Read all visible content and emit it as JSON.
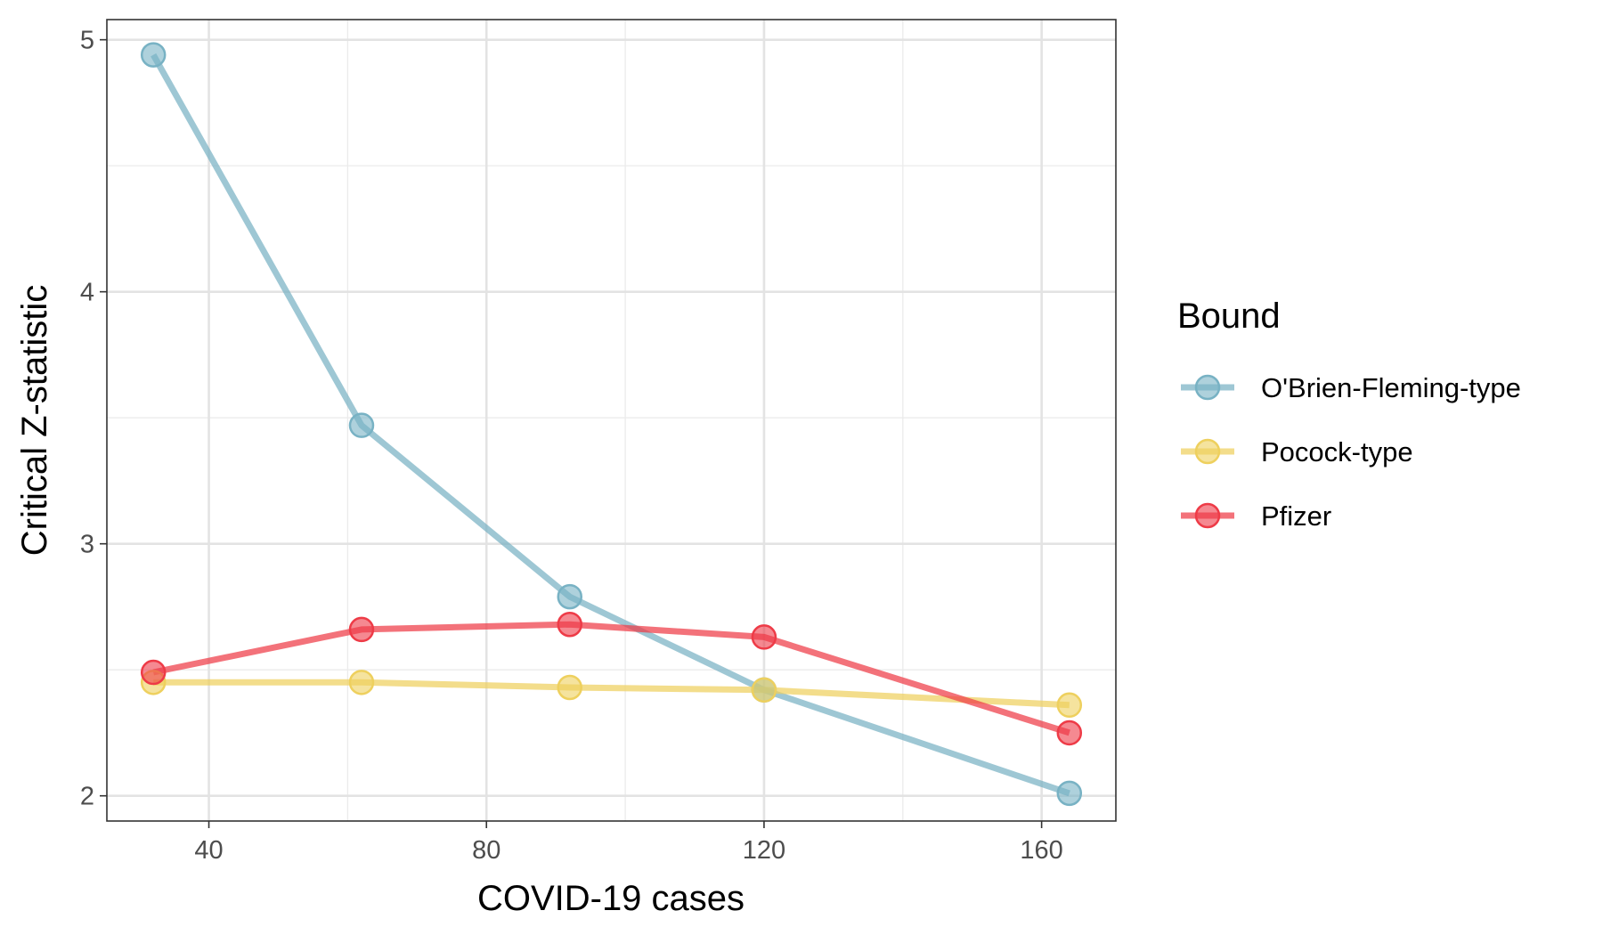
{
  "chart_data": {
    "type": "line",
    "xlabel": "COVID-19 cases",
    "ylabel": "Critical Z-statistic",
    "xlim": [
      25.3,
      170.7
    ],
    "ylim": [
      1.9,
      5.08
    ],
    "xticks": [
      40,
      80,
      120,
      160
    ],
    "yticks": [
      2,
      3,
      4,
      5
    ],
    "xticks_minor": [
      60,
      100,
      140
    ],
    "yticks_minor": [
      2.5,
      3.5,
      4.5
    ],
    "grid": true,
    "legend": {
      "title": "Bound",
      "position": "right"
    },
    "series": [
      {
        "name": "O'Brien-Fleming-type",
        "color": "#78B2C4",
        "x": [
          32,
          62,
          92,
          120,
          164
        ],
        "y": [
          4.94,
          3.47,
          2.79,
          2.42,
          2.01
        ]
      },
      {
        "name": "Pocock-type",
        "color": "#EED05E",
        "x": [
          32,
          62,
          92,
          120,
          164
        ],
        "y": [
          2.45,
          2.45,
          2.43,
          2.42,
          2.36
        ]
      },
      {
        "name": "Pfizer",
        "color": "#EE3B47",
        "x": [
          32,
          62,
          92,
          120,
          164
        ],
        "y": [
          2.49,
          2.66,
          2.68,
          2.63,
          2.25
        ]
      }
    ]
  }
}
